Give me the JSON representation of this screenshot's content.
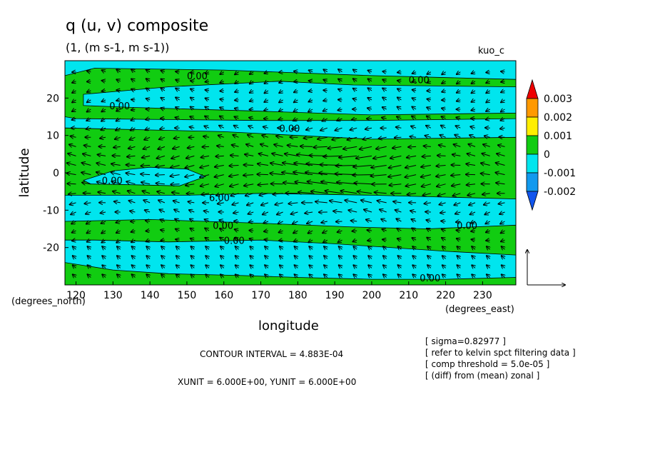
{
  "title": "q (u, v) composite",
  "subtitle": "(1, (m s-1, m s-1))",
  "run_label": "kuo_c",
  "chart_data": {
    "type": "heatmap",
    "xlabel": "longitude",
    "ylabel": "latitude",
    "x_unit_label": "(degrees_east)",
    "y_unit_label": "(degrees_north)",
    "xlim": [
      117,
      239
    ],
    "ylim": [
      -30,
      30
    ],
    "x_ticks": [
      120,
      130,
      140,
      150,
      160,
      170,
      180,
      190,
      200,
      210,
      220,
      230
    ],
    "y_ticks": [
      20,
      10,
      0,
      -10,
      -20
    ],
    "field_regions": [
      {
        "level": 0,
        "color": "#11cc11",
        "polygon": [
          [
            117,
            26
          ],
          [
            125,
            28
          ],
          [
            160,
            27.5
          ],
          [
            200,
            26
          ],
          [
            239,
            25
          ],
          [
            239,
            14.5
          ],
          [
            200,
            14
          ],
          [
            170,
            14
          ],
          [
            120,
            14.5
          ],
          [
            117,
            15
          ]
        ]
      },
      {
        "level": -0.001,
        "color": "#00e5ee",
        "polygon": [
          [
            122,
            21
          ],
          [
            145,
            23
          ],
          [
            175,
            24.5
          ],
          [
            195,
            23.5
          ],
          [
            239,
            23
          ],
          [
            239,
            16
          ],
          [
            200,
            15.5
          ],
          [
            170,
            16.5
          ],
          [
            135,
            17.5
          ],
          [
            122,
            18
          ]
        ]
      },
      {
        "level": 0,
        "color": "#11cc11",
        "polygon": [
          [
            117,
            12
          ],
          [
            160,
            11
          ],
          [
            180,
            10
          ],
          [
            200,
            9
          ],
          [
            239,
            9.5
          ],
          [
            239,
            -7
          ],
          [
            200,
            -6
          ],
          [
            170,
            -5.5
          ],
          [
            150,
            -6
          ],
          [
            117,
            -6
          ]
        ]
      },
      {
        "level": -0.001,
        "color": "#00e5ee",
        "polygon": [
          [
            122,
            -2
          ],
          [
            130,
            0.5
          ],
          [
            140,
            1.5
          ],
          [
            150,
            1
          ],
          [
            155,
            -1
          ],
          [
            148,
            -3.5
          ],
          [
            135,
            -3.2
          ],
          [
            124,
            -3
          ]
        ]
      },
      {
        "level": 0,
        "color": "#11cc11",
        "polygon": [
          [
            117,
            -13
          ],
          [
            140,
            -12.5
          ],
          [
            170,
            -13.5
          ],
          [
            195,
            -14.5
          ],
          [
            215,
            -15
          ],
          [
            239,
            -14
          ],
          [
            239,
            -22
          ],
          [
            220,
            -21
          ],
          [
            190,
            -19
          ],
          [
            170,
            -18
          ],
          [
            145,
            -18.5
          ],
          [
            125,
            -18
          ],
          [
            117,
            -18
          ]
        ]
      },
      {
        "level": 0,
        "color": "#11cc11",
        "polygon": [
          [
            117,
            -30
          ],
          [
            117,
            -24
          ],
          [
            130,
            -26
          ],
          [
            145,
            -27
          ],
          [
            165,
            -27.5
          ],
          [
            180,
            -28
          ],
          [
            200,
            -28.5
          ],
          [
            220,
            -28.5
          ],
          [
            239,
            -28
          ],
          [
            239,
            -30
          ]
        ]
      }
    ],
    "contour_labels": [
      {
        "lon": 150,
        "lat": 25,
        "text": "0.00"
      },
      {
        "lon": 210,
        "lat": 24,
        "text": "0.00"
      },
      {
        "lon": 129,
        "lat": 17,
        "text": "0.00"
      },
      {
        "lon": 175,
        "lat": 11,
        "text": "0.00"
      },
      {
        "lon": 127,
        "lat": -3,
        "text": "0.00"
      },
      {
        "lon": 156,
        "lat": -7.5,
        "text": "6.00"
      },
      {
        "lon": 157,
        "lat": -15,
        "text": "0.00"
      },
      {
        "lon": 160,
        "lat": -19,
        "text": "0.00"
      },
      {
        "lon": 223,
        "lat": -15,
        "text": "0.00"
      },
      {
        "lon": 213,
        "lat": -29,
        "text": "0.00"
      }
    ],
    "colorbar": {
      "labels": [
        "0.003",
        "0.002",
        "0.001",
        "0",
        "-0.001",
        "-0.002"
      ],
      "colors": [
        "#ee0000",
        "#ff9900",
        "#ffee00",
        "#11cc11",
        "#00e5ee",
        "#1199ee",
        "#1155ee"
      ]
    },
    "vector_reference": {
      "xunit": 6.0,
      "yunit": 6.0
    }
  },
  "footer": {
    "contour_interval": "CONTOUR INTERVAL = 4.883E-04",
    "units": "XUNIT = 6.000E+00, YUNIT = 6.000E+00"
  },
  "notes": [
    "[ sigma=0.82977 ]",
    "[ refer to kelvin spct filtering data ]",
    "[ comp threshold = 5.0e-05 ]",
    "[ (diff) from (mean) zonal ]"
  ]
}
